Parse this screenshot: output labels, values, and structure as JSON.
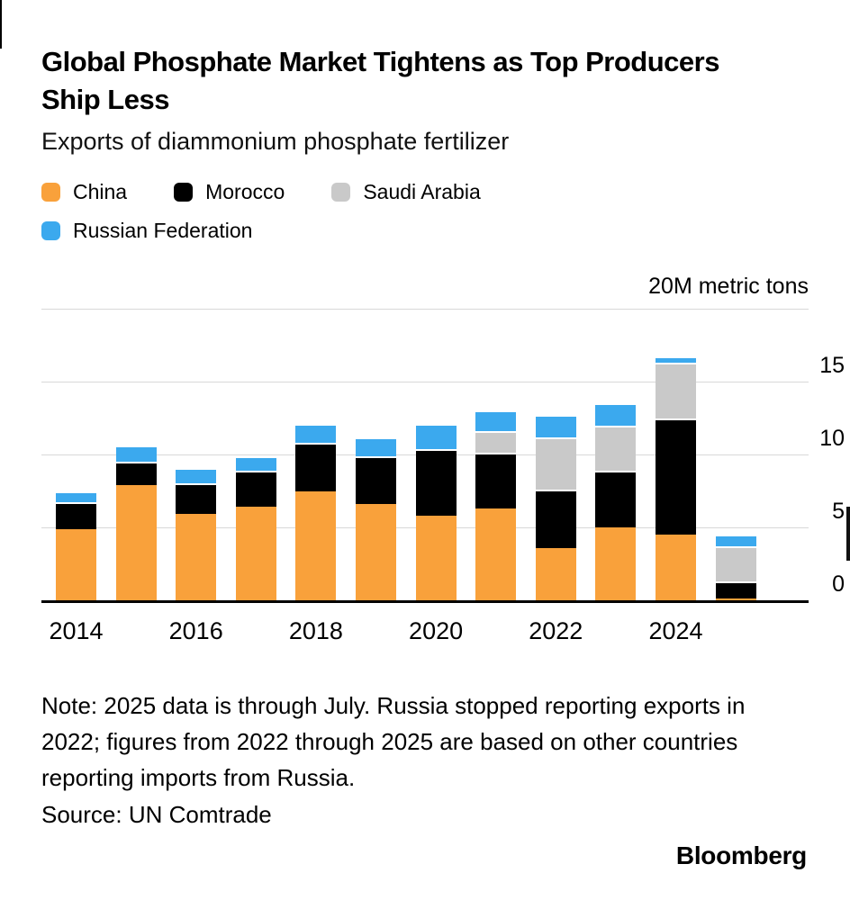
{
  "header": {
    "title": "Global Phosphate Market Tightens as Top Producers Ship Less",
    "subtitle": "Exports of diammonium phosphate fertilizer"
  },
  "legend": {
    "items": [
      {
        "label": "China",
        "color": "#F9A13B"
      },
      {
        "label": "Morocco",
        "color": "#000000"
      },
      {
        "label": "Saudi Arabia",
        "color": "#C9C9C9"
      },
      {
        "label": "Russian Federation",
        "color": "#3BA9EE"
      }
    ]
  },
  "chart_data": {
    "type": "bar",
    "stacked": true,
    "title": "Global Phosphate Market Tightens as Top Producers Ship Less",
    "subtitle": "Exports of diammonium phosphate fertilizer",
    "unit_label": "20M metric tons",
    "xlabel": "",
    "ylabel": "metric tons (millions)",
    "ylim": [
      0,
      20
    ],
    "grid": true,
    "gridline_values": [
      5,
      10,
      15,
      20
    ],
    "categories": [
      "2014",
      "2015",
      "2016",
      "2017",
      "2018",
      "2019",
      "2020",
      "2021",
      "2022",
      "2023",
      "2024",
      "2025"
    ],
    "x_ticks": [
      {
        "index": 0,
        "label": "2014"
      },
      {
        "index": 2,
        "label": "2016"
      },
      {
        "index": 4,
        "label": "2018"
      },
      {
        "index": 6,
        "label": "2020"
      },
      {
        "index": 8,
        "label": "2022"
      },
      {
        "index": 10,
        "label": "2024"
      }
    ],
    "y_ticks": [
      {
        "value": 15,
        "label": "15"
      },
      {
        "value": 10,
        "label": "10"
      },
      {
        "value": 5,
        "label": "5"
      },
      {
        "value": 0,
        "label": "0"
      }
    ],
    "series": [
      {
        "name": "China",
        "color": "#F9A13B",
        "values": [
          4.9,
          7.9,
          5.9,
          6.4,
          7.5,
          6.6,
          5.8,
          6.3,
          3.6,
          5.0,
          4.5,
          0.1
        ]
      },
      {
        "name": "Morocco",
        "color": "#000000",
        "values": [
          1.8,
          1.6,
          2.1,
          2.5,
          3.3,
          3.3,
          4.6,
          3.8,
          4.0,
          3.9,
          8.0,
          1.2
        ]
      },
      {
        "name": "Saudi Arabia",
        "color": "#C9C9C9",
        "values": [
          0,
          0,
          0,
          0,
          0,
          0,
          0,
          1.5,
          3.6,
          3.1,
          3.8,
          2.4
        ]
      },
      {
        "name": "Russian Federation",
        "color": "#3BA9EE",
        "values": [
          0.8,
          1.1,
          1.1,
          1.0,
          1.3,
          1.3,
          1.7,
          1.4,
          1.5,
          1.5,
          0.4,
          0.8
        ]
      }
    ]
  },
  "footer": {
    "note": "Note: 2025 data is through July. Russia stopped reporting exports in 2022; figures from 2022 through 2025 are based on other countries reporting imports from Russia.",
    "source": "Source: UN Comtrade",
    "brand": "Bloomberg"
  }
}
